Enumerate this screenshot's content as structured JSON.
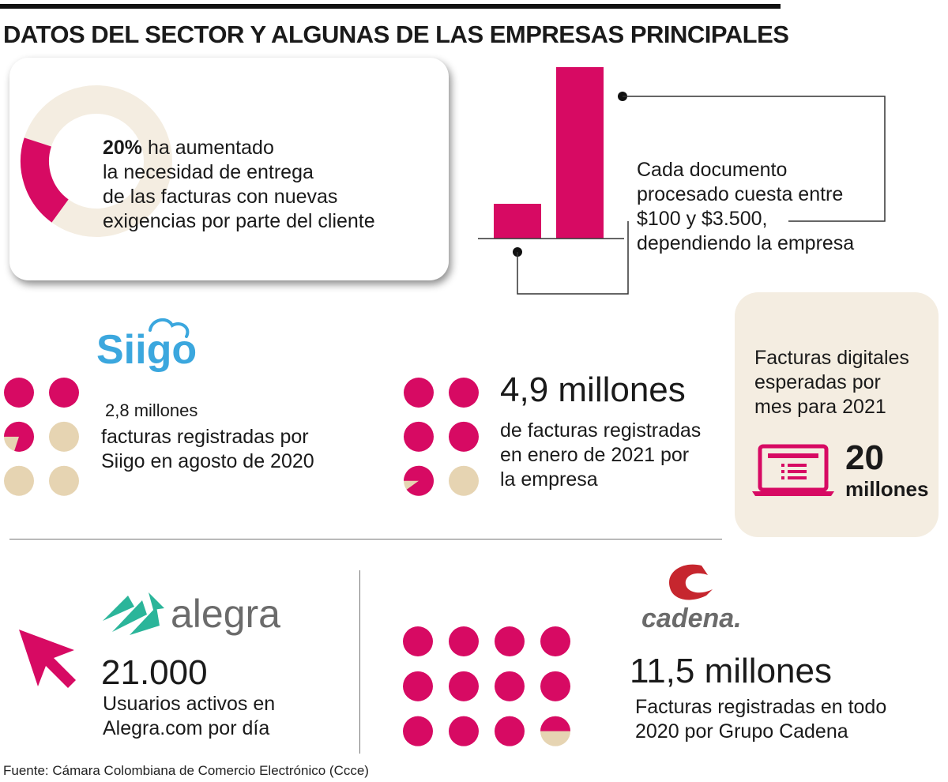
{
  "title": "DATOS DEL SECTOR Y ALGUNAS DE LAS EMPRESAS PRINCIPALES",
  "colors": {
    "magenta": "#d70a63",
    "beige": "#e6d4b2",
    "light_beige": "#f4ede1"
  },
  "stat_need": {
    "percent": 20,
    "bold": "20%",
    "line1_rest": " ha aumentado",
    "line2": "la necesidad de entrega",
    "line3": "de las facturas con nuevas",
    "line4": "exigencias por parte del cliente"
  },
  "cost": {
    "line1": "Cada documento",
    "line2": "procesado cuesta entre",
    "low": "$100",
    "connector": " y ",
    "high": "$3.500",
    "comma": ",",
    "line4": "dependiendo la empresa",
    "bar_low_value": 100,
    "bar_high_value": 3500
  },
  "siigo": {
    "logo_text": "Siigo",
    "amount": "2,8 millones",
    "line1": "facturas registradas por",
    "line2": "Siigo en agosto de 2020",
    "filled_dots": 2.8,
    "total_dots": 6
  },
  "company_jan": {
    "amount": "4,9 millones",
    "line1": "de facturas registradas",
    "line2": "en enero de 2021 por",
    "line3": "la empresa",
    "filled_dots": 4.9,
    "total_dots": 6
  },
  "expected": {
    "line1": "Facturas  digitales",
    "line2": "esperadas por",
    "line3": "mes para 2021",
    "number": "20",
    "unit": "millones",
    "icon": "laptop-icon"
  },
  "alegra": {
    "logo_text": "alegra",
    "number": "21.000",
    "line1": "Usuarios activos en",
    "line2": "Alegra.com por día",
    "icon": "cursor-arrow-icon"
  },
  "cadena": {
    "logo_text": "cadena.",
    "amount": "11,5 millones",
    "line1": "Facturas registradas en todo",
    "line2": "2020 por Grupo Cadena",
    "filled_dots": 11.5,
    "total_dots": 12
  },
  "source": "Fuente: Cámara Colombiana de Comercio Electrónico (Ccce)"
}
